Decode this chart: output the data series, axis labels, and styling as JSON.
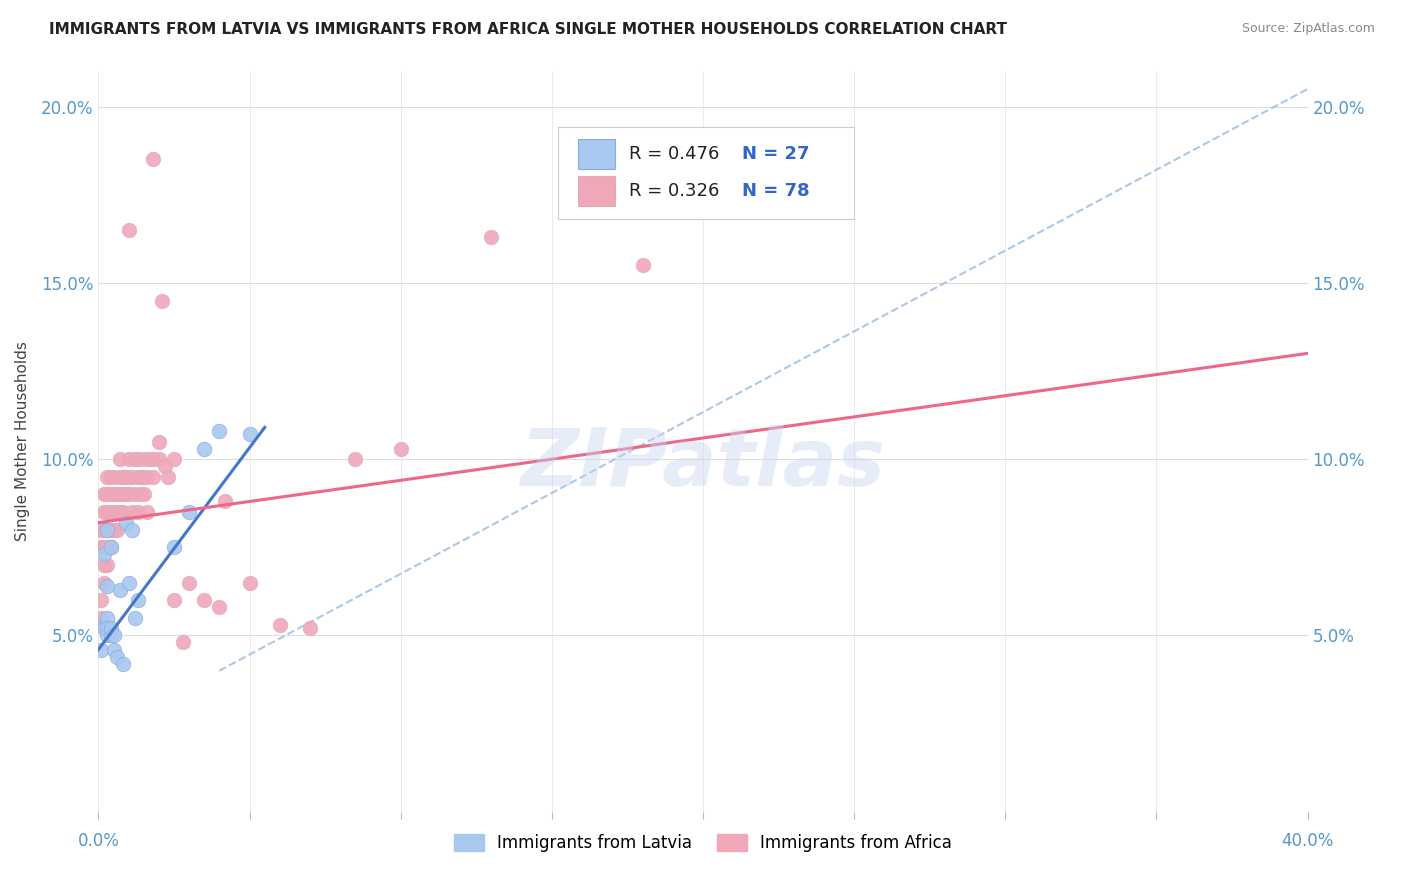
{
  "title": "IMMIGRANTS FROM LATVIA VS IMMIGRANTS FROM AFRICA SINGLE MOTHER HOUSEHOLDS CORRELATION CHART",
  "source": "Source: ZipAtlas.com",
  "ylabel": "Single Mother Households",
  "xlim": [
    0.0,
    0.4
  ],
  "ylim": [
    0.0,
    0.21
  ],
  "ytick_positions": [
    0.05,
    0.1,
    0.15,
    0.2
  ],
  "ytick_labels": [
    "5.0%",
    "10.0%",
    "15.0%",
    "20.0%"
  ],
  "xtick_positions": [
    0.0,
    0.05,
    0.1,
    0.15,
    0.2,
    0.25,
    0.3,
    0.35,
    0.4
  ],
  "blue_color": "#a8c8f0",
  "blue_edge_color": "#88aadd",
  "pink_color": "#f0a8b8",
  "pink_edge_color": "#ddaabb",
  "blue_line_color": "#4477cc",
  "pink_line_color": "#ee6688",
  "dashed_line_color": "#99bbdd",
  "watermark": "ZIPatlas",
  "blue_scatter": [
    [
      0.001,
      0.046
    ],
    [
      0.002,
      0.073
    ],
    [
      0.002,
      0.053
    ],
    [
      0.002,
      0.052
    ],
    [
      0.003,
      0.064
    ],
    [
      0.003,
      0.055
    ],
    [
      0.003,
      0.052
    ],
    [
      0.003,
      0.05
    ],
    [
      0.003,
      0.08
    ],
    [
      0.004,
      0.05
    ],
    [
      0.004,
      0.052
    ],
    [
      0.004,
      0.075
    ],
    [
      0.005,
      0.046
    ],
    [
      0.005,
      0.05
    ],
    [
      0.006,
      0.044
    ],
    [
      0.007,
      0.063
    ],
    [
      0.008,
      0.042
    ],
    [
      0.009,
      0.082
    ],
    [
      0.01,
      0.065
    ],
    [
      0.011,
      0.08
    ],
    [
      0.012,
      0.055
    ],
    [
      0.013,
      0.06
    ],
    [
      0.025,
      0.075
    ],
    [
      0.03,
      0.085
    ],
    [
      0.035,
      0.103
    ],
    [
      0.04,
      0.108
    ],
    [
      0.05,
      0.107
    ]
  ],
  "pink_scatter": [
    [
      0.001,
      0.055
    ],
    [
      0.001,
      0.06
    ],
    [
      0.001,
      0.075
    ],
    [
      0.001,
      0.08
    ],
    [
      0.002,
      0.065
    ],
    [
      0.002,
      0.07
    ],
    [
      0.002,
      0.075
    ],
    [
      0.002,
      0.08
    ],
    [
      0.002,
      0.085
    ],
    [
      0.002,
      0.09
    ],
    [
      0.003,
      0.07
    ],
    [
      0.003,
      0.075
    ],
    [
      0.003,
      0.08
    ],
    [
      0.003,
      0.085
    ],
    [
      0.003,
      0.09
    ],
    [
      0.003,
      0.095
    ],
    [
      0.004,
      0.075
    ],
    [
      0.004,
      0.08
    ],
    [
      0.004,
      0.085
    ],
    [
      0.004,
      0.09
    ],
    [
      0.004,
      0.095
    ],
    [
      0.005,
      0.08
    ],
    [
      0.005,
      0.085
    ],
    [
      0.005,
      0.09
    ],
    [
      0.005,
      0.095
    ],
    [
      0.006,
      0.08
    ],
    [
      0.006,
      0.085
    ],
    [
      0.006,
      0.09
    ],
    [
      0.007,
      0.085
    ],
    [
      0.007,
      0.09
    ],
    [
      0.007,
      0.095
    ],
    [
      0.007,
      0.1
    ],
    [
      0.008,
      0.085
    ],
    [
      0.008,
      0.09
    ],
    [
      0.008,
      0.095
    ],
    [
      0.009,
      0.09
    ],
    [
      0.009,
      0.095
    ],
    [
      0.01,
      0.09
    ],
    [
      0.01,
      0.095
    ],
    [
      0.01,
      0.1
    ],
    [
      0.011,
      0.085
    ],
    [
      0.011,
      0.095
    ],
    [
      0.012,
      0.09
    ],
    [
      0.012,
      0.1
    ],
    [
      0.013,
      0.085
    ],
    [
      0.013,
      0.095
    ],
    [
      0.013,
      0.1
    ],
    [
      0.014,
      0.09
    ],
    [
      0.014,
      0.095
    ],
    [
      0.015,
      0.09
    ],
    [
      0.015,
      0.095
    ],
    [
      0.015,
      0.1
    ],
    [
      0.016,
      0.085
    ],
    [
      0.016,
      0.095
    ],
    [
      0.017,
      0.1
    ],
    [
      0.018,
      0.095
    ],
    [
      0.018,
      0.1
    ],
    [
      0.02,
      0.1
    ],
    [
      0.02,
      0.105
    ],
    [
      0.021,
      0.145
    ],
    [
      0.022,
      0.098
    ],
    [
      0.023,
      0.095
    ],
    [
      0.025,
      0.1
    ],
    [
      0.025,
      0.06
    ],
    [
      0.028,
      0.048
    ],
    [
      0.03,
      0.065
    ],
    [
      0.035,
      0.06
    ],
    [
      0.04,
      0.058
    ],
    [
      0.042,
      0.088
    ],
    [
      0.05,
      0.065
    ],
    [
      0.06,
      0.053
    ],
    [
      0.07,
      0.052
    ],
    [
      0.085,
      0.1
    ],
    [
      0.1,
      0.103
    ],
    [
      0.13,
      0.163
    ],
    [
      0.18,
      0.155
    ],
    [
      0.01,
      0.165
    ],
    [
      0.018,
      0.185
    ]
  ],
  "blue_line_x": [
    0.0,
    0.055
  ],
  "blue_line_y": [
    0.046,
    0.109
  ],
  "pink_line_x": [
    0.0,
    0.4
  ],
  "pink_line_y": [
    0.082,
    0.13
  ],
  "dash_line_x": [
    0.04,
    0.4
  ],
  "dash_line_y": [
    0.04,
    0.205
  ]
}
